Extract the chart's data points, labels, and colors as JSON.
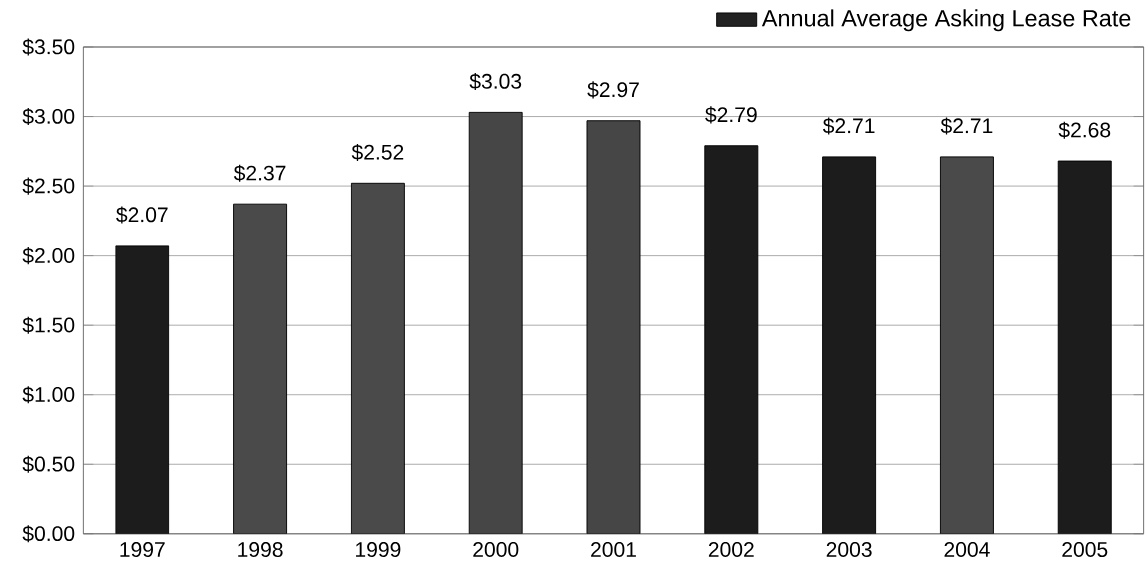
{
  "chart_data": {
    "type": "bar",
    "categories": [
      "1997",
      "1998",
      "1999",
      "2000",
      "2001",
      "2002",
      "2003",
      "2004",
      "2005"
    ],
    "series": [
      {
        "name": "Annual Average Asking Lease Rate",
        "color": "#222222",
        "colors": [
          "#1c1c1c",
          "#4a4a4a",
          "#4a4a4a",
          "#464646",
          "#464646",
          "#1c1c1c",
          "#1c1c1c",
          "#4a4a4a",
          "#1c1c1c"
        ],
        "values": [
          2.07,
          2.37,
          2.52,
          3.03,
          2.97,
          2.79,
          2.71,
          2.71,
          2.68
        ],
        "value_labels": [
          "$2.07",
          "$2.37",
          "$2.52",
          "$3.03",
          "$2.97",
          "$2.79",
          "$2.71",
          "$2.71",
          "$2.68"
        ]
      }
    ],
    "ylim": [
      0,
      3.5
    ],
    "yticks": [
      {
        "value": 0,
        "label": "$0.00"
      },
      {
        "value": 0.5,
        "label": "$0.50"
      },
      {
        "value": 1,
        "label": "$1.00"
      },
      {
        "value": 1.5,
        "label": "$1.50"
      },
      {
        "value": 2,
        "label": "$2.00"
      },
      {
        "value": 2.5,
        "label": "$2.50"
      },
      {
        "value": 3,
        "label": "$3.00"
      },
      {
        "value": 3.5,
        "label": "$3.50"
      }
    ],
    "grid": "y",
    "legend": "top right"
  }
}
